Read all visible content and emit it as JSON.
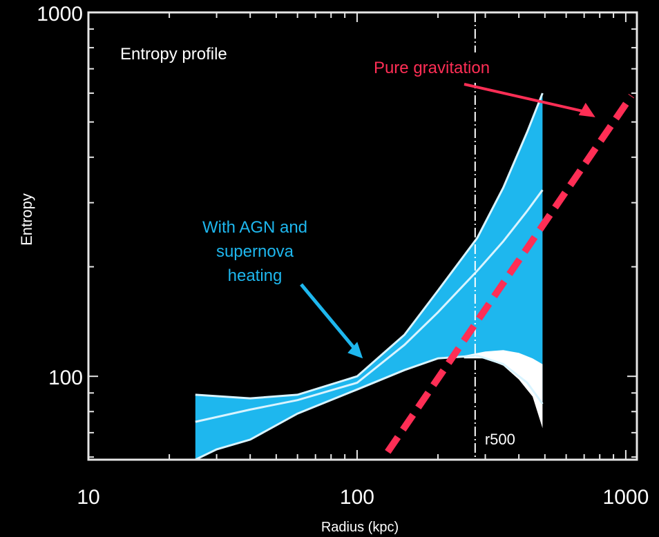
{
  "chart_data": {
    "type": "line",
    "title": "Entropy profile",
    "xlabel": "Radius (kpc)",
    "ylabel": "Entropy",
    "x_scale": "log",
    "y_scale": "log",
    "xlim": [
      10,
      1100
    ],
    "ylim": [
      59,
      1000
    ],
    "x_ticks": [
      10,
      100,
      1000
    ],
    "x_tick_labels": [
      "10",
      "100",
      "1000"
    ],
    "y_ticks": [
      100,
      1000
    ],
    "y_tick_labels": [
      "100",
      "1000"
    ],
    "grid": false,
    "series": [
      {
        "upper_envelope": {
          "x": [
            25,
            40,
            60,
            100,
            150,
            200,
            280,
            350,
            430,
            490
          ],
          "y": [
            89,
            87,
            89,
            100,
            130,
            172,
            240,
            330,
            470,
            600
          ]
        },
        "median_curve": {
          "x": [
            25,
            40,
            60,
            100,
            150,
            200,
            280,
            350,
            430,
            490
          ],
          "y": [
            75,
            81,
            86,
            96,
            122,
            150,
            195,
            235,
            285,
            325
          ]
        },
        "lower_envelope": {
          "x": [
            25,
            30,
            40,
            60,
            100,
            150,
            200,
            280,
            350,
            430,
            490
          ],
          "y": [
            59,
            63,
            67,
            79,
            92,
            104,
            112,
            114,
            108,
            96,
            84
          ]
        },
        "color": "#1EB7EE"
      },
      {
        "x": [
          250,
          300,
          350,
          400,
          450,
          490
        ],
        "upper": [
          114,
          117,
          118,
          116,
          112,
          108
        ],
        "lower": [
          112,
          112,
          107,
          98,
          88,
          72
        ],
        "color": "#FFFFFF"
      },
      {
        "name": "Pure gravitation",
        "style": "dashed",
        "x": [
          130,
          1050
        ],
        "y": [
          62,
          590
        ],
        "color": "#FF2E55"
      }
    ],
    "reference_lines": [
      {
        "label": "r500",
        "x": 275,
        "style": "dash-dot",
        "color": "#FFFFFF"
      }
    ],
    "annotations": [
      {
        "text_lines": [
          "With AGN and",
          "supernova",
          "heating"
        ],
        "color": "#1EB7EE",
        "arrow_to": {
          "x": 105,
          "y": 112
        }
      },
      {
        "text": "Pure gravitation",
        "color": "#FF2E55",
        "arrow_to": {
          "x": 770,
          "y": 515
        }
      }
    ]
  }
}
